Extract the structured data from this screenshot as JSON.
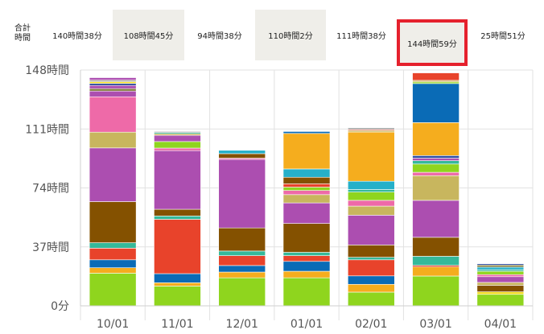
{
  "totals": {
    "label": "合計\n時間",
    "items": [
      {
        "text": "140時間38分",
        "shaded": false,
        "selected": false
      },
      {
        "text": "108時間45分",
        "shaded": true,
        "selected": false
      },
      {
        "text": "94時間38分",
        "shaded": false,
        "selected": false
      },
      {
        "text": "110時間2分",
        "shaded": true,
        "selected": false
      },
      {
        "text": "111時間38分",
        "shaded": false,
        "selected": false
      },
      {
        "text": "144時間59分",
        "shaded": true,
        "selected": true
      },
      {
        "text": "25時間51分",
        "shaded": false,
        "selected": false
      }
    ]
  },
  "chart_data": {
    "type": "bar",
    "stacked": true,
    "categories": [
      "10/01",
      "11/01",
      "12/01",
      "01/01",
      "02/01",
      "03/01",
      "04/01"
    ],
    "y_ticks": [
      "0分",
      "37時間",
      "74時間",
      "111時間",
      "148時間"
    ],
    "ylim": [
      0,
      148
    ],
    "colors": {
      "lime": "#8fd51e",
      "orange": "#f5ad1e",
      "blue": "#0a6bb6",
      "red": "#e8432b",
      "teal": "#35b99a",
      "brown": "#845100",
      "purple": "#ac4eb0",
      "khaki": "#c8b65e",
      "pink": "#ee6aa8",
      "cyan": "#26b0c9",
      "olive": "#7f7a3a",
      "navy": "#2f4fa2",
      "yellow": "#f2dc22",
      "gray": "#9a9a9a"
    },
    "series_order": [
      "lime",
      "orange",
      "blue",
      "red",
      "teal",
      "brown",
      "purple",
      "khaki",
      "pink",
      "cyan",
      "olive",
      "navy",
      "yellow",
      "gray"
    ],
    "stacks": [
      [
        {
          "c": "lime",
          "v": 20.5
        },
        {
          "c": "orange",
          "v": 3.4
        },
        {
          "c": "blue",
          "v": 5
        },
        {
          "c": "red",
          "v": 7.3
        },
        {
          "c": "teal",
          "v": 3.4
        },
        {
          "c": "brown",
          "v": 25.8
        },
        {
          "c": "purple",
          "v": 33.7
        },
        {
          "c": "khaki",
          "v": 9.9
        },
        {
          "c": "pink",
          "v": 22.2
        },
        {
          "c": "purple",
          "v": 3.6
        },
        {
          "c": "olive",
          "v": 1.5
        },
        {
          "c": "purple",
          "v": 2
        },
        {
          "c": "navy",
          "v": 1.3
        },
        {
          "c": "yellow",
          "v": 1.1
        },
        {
          "c": "gray",
          "v": 1
        },
        {
          "c": "purple",
          "v": 1.5
        }
      ],
      [
        {
          "c": "lime",
          "v": 12.4
        },
        {
          "c": "orange",
          "v": 2.1
        },
        {
          "c": "blue",
          "v": 5.7
        },
        {
          "c": "red",
          "v": 34.1
        },
        {
          "c": "teal",
          "v": 2.1
        },
        {
          "c": "brown",
          "v": 4.2
        },
        {
          "c": "purple",
          "v": 36.8
        },
        {
          "c": "pink",
          "v": 1.6
        },
        {
          "c": "lime",
          "v": 4.1
        },
        {
          "c": "purple",
          "v": 3.9
        },
        {
          "c": "khaki",
          "v": 1
        },
        {
          "c": "teal",
          "v": 0.8
        },
        {
          "c": "gray",
          "v": 0.6
        }
      ],
      [
        {
          "c": "lime",
          "v": 17.6
        },
        {
          "c": "orange",
          "v": 3.6
        },
        {
          "c": "blue",
          "v": 4.1
        },
        {
          "c": "red",
          "v": 6.2
        },
        {
          "c": "teal",
          "v": 2.9
        },
        {
          "c": "brown",
          "v": 14.5
        },
        {
          "c": "purple",
          "v": 43
        },
        {
          "c": "pink",
          "v": 0.8
        },
        {
          "c": "brown",
          "v": 2.8
        },
        {
          "c": "cyan",
          "v": 2.1
        }
      ],
      [
        {
          "c": "lime",
          "v": 17.6
        },
        {
          "c": "orange",
          "v": 4.1
        },
        {
          "c": "blue",
          "v": 6.2
        },
        {
          "c": "red",
          "v": 3.6
        },
        {
          "c": "teal",
          "v": 2.1
        },
        {
          "c": "brown",
          "v": 18.1
        },
        {
          "c": "purple",
          "v": 12.9
        },
        {
          "c": "khaki",
          "v": 5.2
        },
        {
          "c": "pink",
          "v": 2.6
        },
        {
          "c": "lime",
          "v": 2.1
        },
        {
          "c": "red",
          "v": 2.1
        },
        {
          "c": "brown",
          "v": 4.1
        },
        {
          "c": "cyan",
          "v": 5.2
        },
        {
          "c": "orange",
          "v": 22.3
        },
        {
          "c": "blue",
          "v": 1.2
        }
      ],
      [
        {
          "c": "lime",
          "v": 8.6
        },
        {
          "c": "orange",
          "v": 4.9
        },
        {
          "c": "blue",
          "v": 5.3
        },
        {
          "c": "red",
          "v": 10.1
        },
        {
          "c": "teal",
          "v": 1.6
        },
        {
          "c": "brown",
          "v": 7.7
        },
        {
          "c": "purple",
          "v": 18.7
        },
        {
          "c": "khaki",
          "v": 5.7
        },
        {
          "c": "pink",
          "v": 3.6
        },
        {
          "c": "lime",
          "v": 5.2
        },
        {
          "c": "teal",
          "v": 1.6
        },
        {
          "c": "cyan",
          "v": 5.2
        },
        {
          "c": "orange",
          "v": 30.9
        },
        {
          "c": "khaki",
          "v": 1
        },
        {
          "c": "red",
          "v": 0.6
        },
        {
          "c": "gray",
          "v": 1
        }
      ],
      [
        {
          "c": "lime",
          "v": 18.7
        },
        {
          "c": "orange",
          "v": 5.7
        },
        {
          "c": "red",
          "v": 1
        },
        {
          "c": "teal",
          "v": 5.7
        },
        {
          "c": "brown",
          "v": 11.9
        },
        {
          "c": "purple",
          "v": 23.2
        },
        {
          "c": "khaki",
          "v": 15.5
        },
        {
          "c": "pink",
          "v": 2.1
        },
        {
          "c": "lime",
          "v": 5.2
        },
        {
          "c": "teal",
          "v": 2.1
        },
        {
          "c": "purple",
          "v": 1.6
        },
        {
          "c": "navy",
          "v": 1.6
        },
        {
          "c": "orange",
          "v": 20.7
        },
        {
          "c": "blue",
          "v": 24.5
        },
        {
          "c": "lime",
          "v": 1
        },
        {
          "c": "khaki",
          "v": 1
        },
        {
          "c": "red",
          "v": 4.7
        }
      ],
      [
        {
          "c": "lime",
          "v": 7.2
        },
        {
          "c": "yellow",
          "v": 1.6
        },
        {
          "c": "brown",
          "v": 4.1
        },
        {
          "c": "khaki",
          "v": 1.8
        },
        {
          "c": "purple",
          "v": 3.6
        },
        {
          "c": "pink",
          "v": 1.3
        },
        {
          "c": "lime",
          "v": 2.1
        },
        {
          "c": "teal",
          "v": 1
        },
        {
          "c": "cyan",
          "v": 1.6
        },
        {
          "c": "olive",
          "v": 1.3
        },
        {
          "c": "navy",
          "v": 0.8
        }
      ]
    ]
  }
}
